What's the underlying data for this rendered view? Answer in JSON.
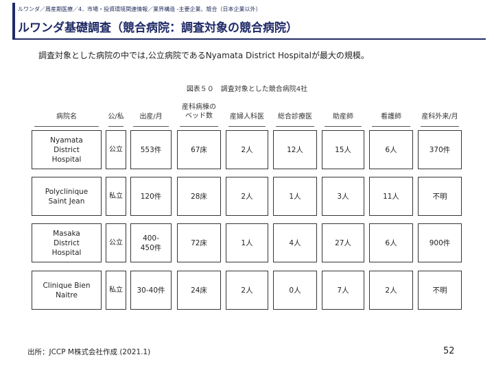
{
  "header": {
    "breadcrumb": "ルワンダ／周産期医療／4．市場・投資環境関連情報／業界構造 -主要企業、競合（日本企業以外）",
    "title": "ルワンダ基礎調査（競合病院：調査対象の競合病院）"
  },
  "summary": "調査対象とした病院の中では,公立病院であるNyamata District Hospitalが最大の規模。",
  "figure": {
    "caption": "図表５０　調査対象とした競合病院4社",
    "headers": {
      "name": "病院名",
      "type": "公/私",
      "births": "出産/月",
      "beds": "産科病棟の\nベッド数",
      "obgyn": "産婦人科医",
      "gp": "総合診療医",
      "midwife": "助産師",
      "nurse": "看護師",
      "outpatient": "産科外来/月"
    },
    "rows": [
      {
        "name": "Nyamata\nDistrict\nHospital",
        "type": "公立",
        "births": "553件",
        "beds": "67床",
        "obgyn": "2人",
        "gp": "12人",
        "midwife": "15人",
        "nurse": "6人",
        "outpatient": "370件"
      },
      {
        "name": "Polyclinique\nSaint Jean",
        "type": "私立",
        "births": "120件",
        "beds": "28床",
        "obgyn": "2人",
        "gp": "1人",
        "midwife": "3人",
        "nurse": "11人",
        "outpatient": "不明"
      },
      {
        "name": "Masaka\nDistrict\nHospital",
        "type": "公立",
        "births": "400-\n450件",
        "beds": "72床",
        "obgyn": "1人",
        "gp": "4人",
        "midwife": "27人",
        "nurse": "6人",
        "outpatient": "900件"
      },
      {
        "name": "Clinique Bien\nNaitre",
        "type": "私立",
        "births": "30-40件",
        "beds": "24床",
        "obgyn": "2人",
        "gp": "0人",
        "midwife": "7人",
        "nurse": "2人",
        "outpatient": "不明"
      }
    ]
  },
  "footer": {
    "source": "出所：JCCP M株式会社作成 (2021.1)",
    "page": "52"
  }
}
